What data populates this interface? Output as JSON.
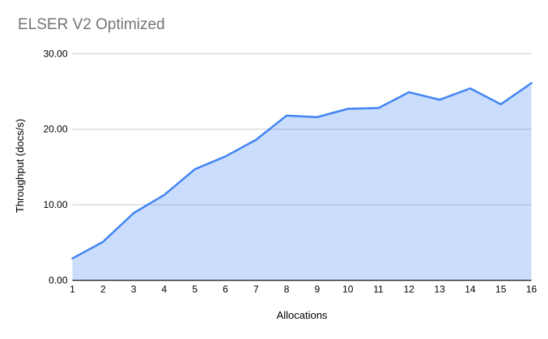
{
  "page": {
    "background": "#ffffff"
  },
  "chart_data": {
    "type": "area",
    "title": "ELSER V2 Optimized",
    "xlabel": "Allocations",
    "ylabel": "Throughput (docs/s)",
    "categories": [
      "1",
      "2",
      "3",
      "4",
      "5",
      "6",
      "7",
      "8",
      "9",
      "10",
      "11",
      "12",
      "13",
      "14",
      "15",
      "16"
    ],
    "values": [
      2.9,
      5.1,
      8.9,
      11.3,
      14.7,
      16.4,
      18.6,
      21.8,
      21.6,
      22.7,
      22.8,
      24.9,
      23.9,
      25.4,
      23.3,
      26.1
    ],
    "ylim": [
      0,
      30
    ],
    "yticks": [
      0,
      10,
      20,
      30
    ],
    "ytick_labels": [
      "0.00",
      "10.00",
      "20.00",
      "30.00"
    ],
    "grid": true,
    "legend": "none",
    "colors": {
      "line": "#4285f4",
      "fill": "rgba(66,133,244,0.28)",
      "grid": "#cccccc",
      "axis": "#333333",
      "tick_text": "#000000",
      "title_text": "#757575"
    }
  }
}
